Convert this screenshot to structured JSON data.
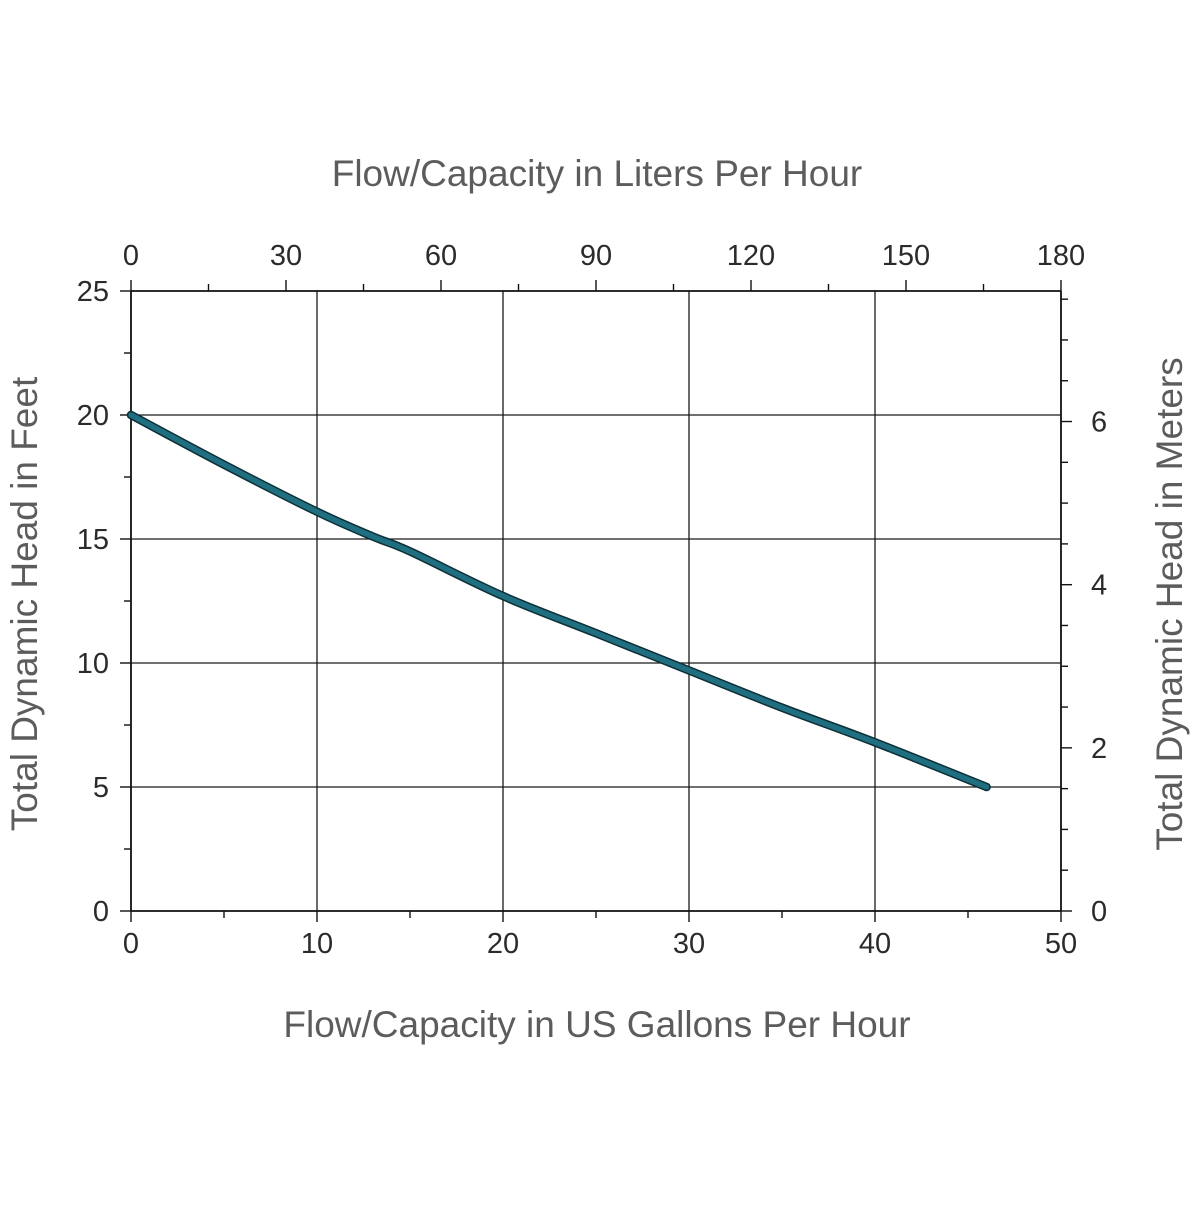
{
  "chart_data": {
    "type": "line",
    "title": "",
    "xlabel": "Flow/Capacity in US Gallons Per Hour",
    "ylabel": "Total Dynamic Head in Feet",
    "x2label": "Flow/Capacity in Liters Per Hour",
    "y2label": "Total Dynamic Head in Meters",
    "xlim": [
      0,
      50
    ],
    "ylim": [
      0,
      25
    ],
    "x2lim": [
      0,
      180
    ],
    "y2lim": [
      0,
      7.6
    ],
    "x_ticks": [
      0,
      10,
      20,
      30,
      40,
      50
    ],
    "x_minor_ticks": [
      5,
      15,
      25,
      35,
      45
    ],
    "y_ticks": [
      0,
      5,
      10,
      15,
      20,
      25
    ],
    "y_minor_ticks": [
      2.5,
      7.5,
      12.5,
      17.5,
      22.5
    ],
    "x2_ticks": [
      0,
      30,
      60,
      90,
      120,
      150,
      180
    ],
    "x2_minor_ticks": [
      15,
      45,
      75,
      105,
      135,
      165
    ],
    "y2_ticks": [
      0,
      2,
      4,
      6
    ],
    "y2_minor_ticks": [
      0.5,
      1,
      1.5,
      2.5,
      3,
      3.5,
      4.5,
      5,
      5.5,
      6.5,
      7,
      7.5
    ],
    "x_tick_labels": [
      "0",
      "10",
      "20",
      "30",
      "40",
      "50"
    ],
    "y_tick_labels": [
      "0",
      "5",
      "10",
      "15",
      "20",
      "25"
    ],
    "x2_tick_labels": [
      "0",
      "30",
      "60",
      "90",
      "120",
      "150",
      "180"
    ],
    "y2_tick_labels": [
      "0",
      "2",
      "4",
      "6"
    ],
    "grid": true,
    "legend": "none",
    "series": [
      {
        "color": "#1f6f80",
        "x": [
          0,
          5,
          10,
          13,
          15,
          20,
          25,
          30,
          35,
          40,
          46
        ],
        "y": [
          20.0,
          18.0,
          16.1,
          15.1,
          14.5,
          12.7,
          11.2,
          9.7,
          8.2,
          6.8,
          5.0
        ]
      }
    ]
  }
}
